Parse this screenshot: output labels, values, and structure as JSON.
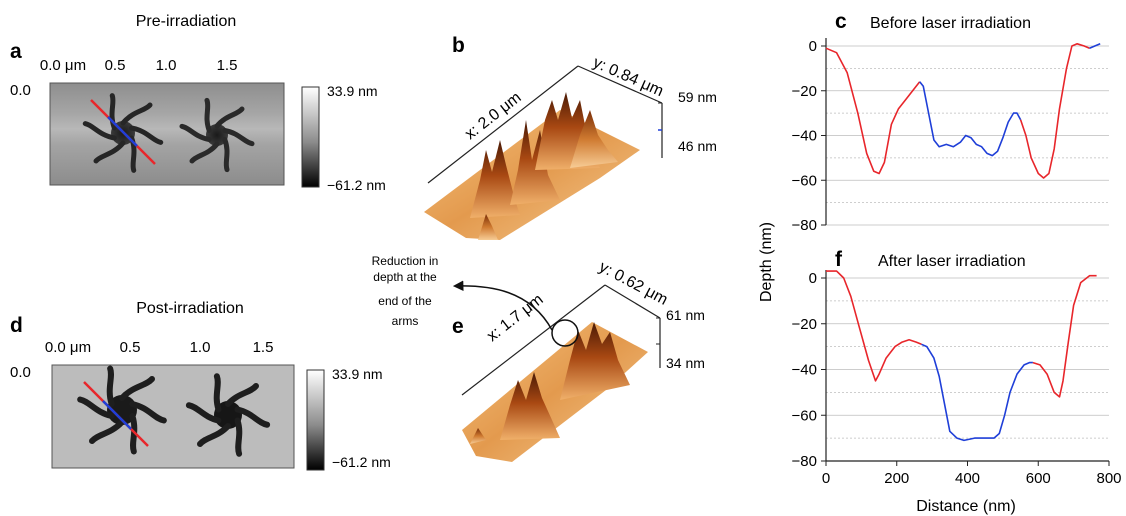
{
  "panels": {
    "a": {
      "letter": "a",
      "title": "Pre-irradiation",
      "x_ticks": [
        "0.0 μm",
        "0.5",
        "1.0",
        "1.5"
      ],
      "y_tick": "0.0",
      "colorbar": {
        "max": "33.9 nm",
        "min": "−61.2 nm"
      }
    },
    "b": {
      "letter": "b",
      "x_label": "x: 2.0 μm",
      "y_label": "y: 0.84 μm",
      "z_top": "59 nm",
      "z_mid": "46 nm"
    },
    "d": {
      "letter": "d",
      "title": "Post-irradiation",
      "x_ticks": [
        "0.0 μm",
        "0.5",
        "1.0",
        "1.5"
      ],
      "y_tick": "0.0",
      "colorbar": {
        "max": "33.9 nm",
        "min": "−61.2 nm"
      }
    },
    "e": {
      "letter": "e",
      "x_label": "x: 1.7 μm",
      "y_label": "y: 0.62 μm",
      "z_top": "61 nm",
      "z_mid": "34 nm",
      "annotation": [
        "Reduction in",
        "depth at the",
        "end of the",
        "arms"
      ]
    },
    "c": {
      "letter": "c",
      "title": "Before laser irradiation"
    },
    "f": {
      "letter": "f",
      "title": "After laser irradiation"
    }
  },
  "colors": {
    "red": "#e8262b",
    "blue": "#1f3fd8",
    "grid": "#bdbdbd",
    "axis": "#222222"
  },
  "chart_data": [
    {
      "type": "line",
      "title": "Before laser irradiation",
      "xlabel": "Distance (nm)",
      "ylabel": "Depth (nm)",
      "xlim": [
        0,
        800
      ],
      "ylim": [
        -80,
        5
      ],
      "x_ticks": [
        0,
        200,
        400,
        600,
        800
      ],
      "y_ticks": [
        0,
        -20,
        -40,
        -60,
        -80
      ],
      "grid": true,
      "series": [
        {
          "color": "red",
          "points": [
            [
              0,
              -1
            ],
            [
              30,
              -3
            ],
            [
              60,
              -12
            ],
            [
              90,
              -30
            ],
            [
              115,
              -48
            ],
            [
              135,
              -56
            ],
            [
              150,
              -57
            ],
            [
              165,
              -52
            ],
            [
              185,
              -35
            ],
            [
              205,
              -28
            ],
            [
              225,
              -24
            ],
            [
              250,
              -19
            ],
            [
              265,
              -16
            ]
          ]
        },
        {
          "color": "blue",
          "points": [
            [
              265,
              -16
            ],
            [
              275,
              -18
            ],
            [
              290,
              -30
            ],
            [
              305,
              -42
            ],
            [
              320,
              -45
            ],
            [
              340,
              -44
            ],
            [
              360,
              -45
            ],
            [
              380,
              -43
            ],
            [
              395,
              -40
            ],
            [
              410,
              -41
            ],
            [
              425,
              -44
            ],
            [
              440,
              -45
            ],
            [
              455,
              -48
            ],
            [
              470,
              -49
            ],
            [
              485,
              -47
            ],
            [
              500,
              -41
            ],
            [
              515,
              -34
            ],
            [
              530,
              -30
            ],
            [
              540,
              -30
            ],
            [
              550,
              -33
            ]
          ]
        },
        {
          "color": "red",
          "points": [
            [
              550,
              -33
            ],
            [
              565,
              -40
            ],
            [
              580,
              -50
            ],
            [
              600,
              -57
            ],
            [
              615,
              -59
            ],
            [
              630,
              -57
            ],
            [
              645,
              -46
            ],
            [
              660,
              -28
            ],
            [
              680,
              -10
            ],
            [
              695,
              0
            ],
            [
              710,
              1
            ],
            [
              730,
              0
            ],
            [
              745,
              -1
            ]
          ]
        },
        {
          "color": "blue",
          "points": [
            [
              745,
              -1
            ],
            [
              760,
              0
            ],
            [
              775,
              1
            ]
          ]
        }
      ]
    },
    {
      "type": "line",
      "title": "After laser irradiation",
      "xlabel": "Distance (nm)",
      "ylabel": "Depth (nm)",
      "xlim": [
        0,
        800
      ],
      "ylim": [
        -80,
        5
      ],
      "x_ticks": [
        0,
        200,
        400,
        600,
        800
      ],
      "y_ticks": [
        0,
        -20,
        -40,
        -60,
        -80
      ],
      "grid": true,
      "series": [
        {
          "color": "red",
          "points": [
            [
              0,
              3
            ],
            [
              30,
              3
            ],
            [
              50,
              0
            ],
            [
              70,
              -8
            ],
            [
              95,
              -22
            ],
            [
              120,
              -36
            ],
            [
              140,
              -45
            ],
            [
              150,
              -42
            ],
            [
              170,
              -35
            ],
            [
              195,
              -30
            ],
            [
              215,
              -28
            ],
            [
              235,
              -27
            ],
            [
              255,
              -28
            ],
            [
              270,
              -29
            ]
          ]
        },
        {
          "color": "blue",
          "points": [
            [
              270,
              -29
            ],
            [
              285,
              -30
            ],
            [
              305,
              -35
            ],
            [
              320,
              -43
            ],
            [
              335,
              -55
            ],
            [
              350,
              -67
            ],
            [
              370,
              -70
            ],
            [
              390,
              -71
            ],
            [
              420,
              -70
            ],
            [
              450,
              -70
            ],
            [
              475,
              -70
            ],
            [
              490,
              -68
            ],
            [
              505,
              -60
            ],
            [
              520,
              -50
            ],
            [
              540,
              -42
            ],
            [
              560,
              -38
            ],
            [
              575,
              -37
            ],
            [
              585,
              -37
            ]
          ]
        },
        {
          "color": "red",
          "points": [
            [
              585,
              -37
            ],
            [
              605,
              -38
            ],
            [
              625,
              -42
            ],
            [
              645,
              -50
            ],
            [
              660,
              -52
            ],
            [
              670,
              -45
            ],
            [
              685,
              -28
            ],
            [
              700,
              -12
            ],
            [
              720,
              -2
            ],
            [
              745,
              1
            ],
            [
              765,
              1
            ]
          ]
        }
      ]
    }
  ]
}
